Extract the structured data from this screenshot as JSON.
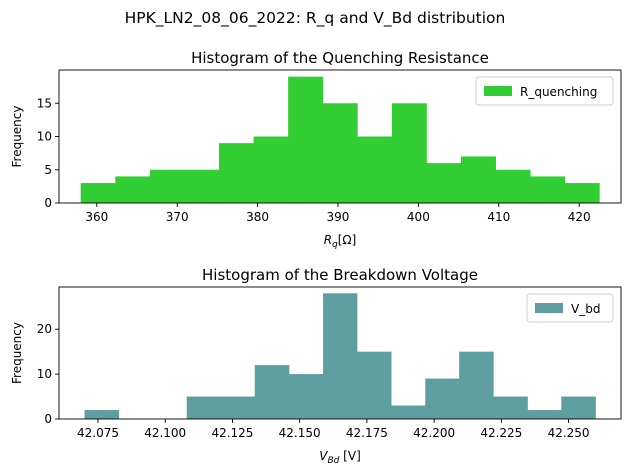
{
  "figure": {
    "suptitle": "HPK_LN2_08_06_2022: R_q and V_Bd distribution"
  },
  "chart_data": [
    {
      "type": "bar",
      "title": "Histogram of the Quenching Resistance",
      "xlabel": "R_q[Ω]",
      "xlabel_parts": {
        "base": "R",
        "sub": "q",
        "suffix": "[Ω]"
      },
      "ylabel": "Frequency",
      "xlim": [
        355.3,
        425.2
      ],
      "ylim": [
        0,
        20
      ],
      "xticks": [
        360,
        370,
        380,
        390,
        400,
        410,
        420
      ],
      "yticks": [
        0,
        5,
        10,
        15
      ],
      "bin_edges": [
        358.0,
        362.3,
        366.6,
        370.9,
        375.2,
        379.5,
        383.8,
        388.1,
        392.4,
        396.7,
        401.0,
        405.3,
        409.6,
        413.9,
        418.2,
        422.5
      ],
      "values": [
        3,
        4,
        5,
        5,
        9,
        10,
        19,
        15,
        10,
        15,
        6,
        7,
        5,
        4,
        3
      ],
      "series": [
        {
          "name": "R_quenching",
          "color": "#32cd32"
        }
      ],
      "legend": "top-right",
      "grid": false
    },
    {
      "type": "bar",
      "title": "Histogram of the Breakdown Voltage",
      "xlabel": "V_Bd [V]",
      "xlabel_parts": {
        "base": "V",
        "sub": "Bd",
        "suffix": " [V]"
      },
      "ylabel": "Frequency",
      "xlim": [
        42.0605,
        42.2695
      ],
      "ylim": [
        0,
        29.4
      ],
      "xticks": [
        42.075,
        42.1,
        42.125,
        42.15,
        42.175,
        42.2,
        42.225,
        42.25
      ],
      "xtick_labels": [
        "42.075",
        "42.100",
        "42.125",
        "42.150",
        "42.175",
        "42.200",
        "42.225",
        "42.250"
      ],
      "yticks": [
        0,
        10,
        20
      ],
      "bin_edges": [
        42.07,
        42.0827,
        42.0953,
        42.108,
        42.1207,
        42.1333,
        42.146,
        42.1587,
        42.1713,
        42.184,
        42.1967,
        42.2093,
        42.222,
        42.2347,
        42.2473,
        42.26
      ],
      "values": [
        2,
        0,
        0,
        5,
        5,
        12,
        10,
        28,
        15,
        3,
        9,
        15,
        5,
        2,
        5
      ],
      "series": [
        {
          "name": "V_bd",
          "color": "#5f9ea0"
        }
      ],
      "legend": "top-right",
      "grid": false
    }
  ]
}
